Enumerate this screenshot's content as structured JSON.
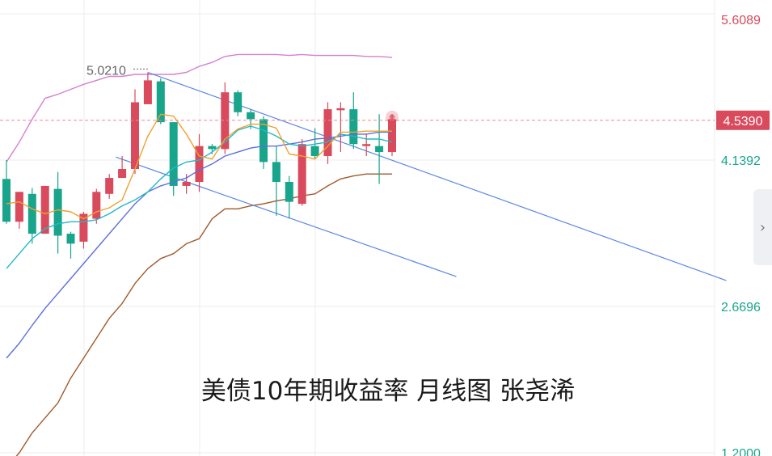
{
  "colors": {
    "up": "#d94a5c",
    "down": "#18a58b",
    "ma5": "#f0a030",
    "ma10": "#20b8c8",
    "ma20": "#5b6fe0",
    "boll_upper": "#d680d0",
    "boll_lower": "#a05a2a",
    "trend": "#5b86e5",
    "grid": "#ececec",
    "current_dash": "#e88a96",
    "axis_up": "#d94a5c",
    "axis_down": "#18a58b",
    "current_bg": "#d94a5c"
  },
  "ui": {
    "expand_icon": "chevron-right-icon",
    "expand_glyph": "›"
  },
  "chart_data": {
    "type": "candlestick",
    "caption": "美债10年期收益率 月线图 张尧浠",
    "y_axis": {
      "ticks": [
        "5.6089",
        "4.1392",
        "2.6696",
        "1.2000"
      ],
      "current": "4.5390",
      "ylim": [
        1.2,
        5.6089
      ]
    },
    "annotations": [
      {
        "text": "5.0210",
        "value": 5.021
      }
    ],
    "candles": [
      {
        "o": 3.95,
        "h": 4.14,
        "l": 3.5,
        "c": 3.52
      },
      {
        "o": 3.52,
        "h": 3.82,
        "l": 3.45,
        "c": 3.82
      },
      {
        "o": 3.8,
        "h": 3.86,
        "l": 3.3,
        "c": 3.4
      },
      {
        "o": 3.4,
        "h": 3.88,
        "l": 3.4,
        "c": 3.88
      },
      {
        "o": 3.85,
        "h": 4.02,
        "l": 3.2,
        "c": 3.38
      },
      {
        "o": 3.4,
        "h": 3.42,
        "l": 3.15,
        "c": 3.3
      },
      {
        "o": 3.32,
        "h": 3.62,
        "l": 3.25,
        "c": 3.6
      },
      {
        "o": 3.55,
        "h": 3.85,
        "l": 3.5,
        "c": 3.82
      },
      {
        "o": 3.8,
        "h": 4.0,
        "l": 3.75,
        "c": 3.96
      },
      {
        "o": 3.96,
        "h": 4.18,
        "l": 3.96,
        "c": 4.05
      },
      {
        "o": 4.05,
        "h": 4.85,
        "l": 4.0,
        "c": 4.72
      },
      {
        "o": 4.7,
        "h": 5.02,
        "l": 4.7,
        "c": 4.94
      },
      {
        "o": 4.93,
        "h": 4.96,
        "l": 4.5,
        "c": 4.52
      },
      {
        "o": 4.52,
        "h": 4.52,
        "l": 3.78,
        "c": 3.88
      },
      {
        "o": 3.88,
        "h": 4.0,
        "l": 3.8,
        "c": 3.92
      },
      {
        "o": 3.92,
        "h": 4.4,
        "l": 3.82,
        "c": 4.28
      },
      {
        "o": 4.28,
        "h": 4.3,
        "l": 4.2,
        "c": 4.25
      },
      {
        "o": 4.25,
        "h": 4.92,
        "l": 4.2,
        "c": 4.82
      },
      {
        "o": 4.82,
        "h": 4.84,
        "l": 4.58,
        "c": 4.62
      },
      {
        "o": 4.62,
        "h": 4.65,
        "l": 4.45,
        "c": 4.55
      },
      {
        "o": 4.55,
        "h": 4.58,
        "l": 4.05,
        "c": 4.12
      },
      {
        "o": 4.12,
        "h": 4.28,
        "l": 3.58,
        "c": 3.92
      },
      {
        "o": 3.92,
        "h": 3.98,
        "l": 3.55,
        "c": 3.72
      },
      {
        "o": 3.7,
        "h": 4.35,
        "l": 3.68,
        "c": 4.3
      },
      {
        "o": 4.28,
        "h": 4.46,
        "l": 4.15,
        "c": 4.18
      },
      {
        "o": 4.18,
        "h": 4.72,
        "l": 4.1,
        "c": 4.65
      },
      {
        "o": 4.64,
        "h": 4.72,
        "l": 4.22,
        "c": 4.66
      },
      {
        "o": 4.65,
        "h": 4.82,
        "l": 4.25,
        "c": 4.3
      },
      {
        "o": 4.28,
        "h": 4.4,
        "l": 4.18,
        "c": 4.3
      },
      {
        "o": 4.28,
        "h": 4.6,
        "l": 3.9,
        "c": 4.22
      },
      {
        "o": 4.22,
        "h": 4.6,
        "l": 4.18,
        "c": 4.55
      }
    ],
    "ma5": [
      3.7,
      3.72,
      3.65,
      3.6,
      3.64,
      3.62,
      3.55,
      3.62,
      3.66,
      3.74,
      4.05,
      4.38,
      4.6,
      4.58,
      4.4,
      4.18,
      4.15,
      4.35,
      4.45,
      4.5,
      4.5,
      4.46,
      4.2,
      4.18,
      4.15,
      4.28,
      4.42,
      4.42,
      4.43,
      4.43,
      4.43
    ],
    "ma10": [
      3.05,
      3.2,
      3.35,
      3.45,
      3.5,
      3.52,
      3.52,
      3.54,
      3.6,
      3.68,
      3.74,
      3.82,
      3.95,
      4.06,
      4.12,
      4.14,
      4.22,
      4.32,
      4.44,
      4.48,
      4.44,
      4.38,
      4.3,
      4.28,
      4.3,
      4.32,
      4.4,
      4.38,
      4.35,
      4.35,
      4.32
    ],
    "ma20": [
      2.15,
      2.3,
      2.48,
      2.65,
      2.8,
      2.95,
      3.1,
      3.25,
      3.4,
      3.55,
      3.7,
      3.82,
      3.88,
      3.92,
      3.96,
      4.04,
      4.1,
      4.18,
      4.22,
      4.26,
      4.28,
      4.28,
      4.3,
      4.32,
      4.35,
      4.36,
      4.38,
      4.4,
      4.4,
      4.42,
      4.42
    ],
    "boll_upper": [
      4.12,
      4.32,
      4.55,
      4.76,
      4.8,
      4.85,
      4.9,
      4.94,
      4.98,
      4.98,
      5.0,
      5.0,
      5.0,
      5.0,
      5.02,
      5.08,
      5.12,
      5.18,
      5.2,
      5.2,
      5.2,
      5.2,
      5.19,
      5.2,
      5.19,
      5.19,
      5.19,
      5.19,
      5.18,
      5.18,
      5.17
    ],
    "boll_lower": [
      1.05,
      1.2,
      1.4,
      1.55,
      1.7,
      1.95,
      2.15,
      2.35,
      2.55,
      2.7,
      2.9,
      3.05,
      3.15,
      3.2,
      3.3,
      3.35,
      3.55,
      3.65,
      3.65,
      3.68,
      3.7,
      3.73,
      3.75,
      3.78,
      3.8,
      3.88,
      3.95,
      3.98,
      4.0,
      4.0,
      4.0
    ],
    "trend_lines": [
      {
        "from": [
          11.0,
          5.02
        ],
        "to": [
          56.0,
          2.93
        ]
      },
      {
        "from": [
          8.5,
          4.17
        ],
        "to": [
          35.0,
          2.97
        ]
      }
    ]
  }
}
